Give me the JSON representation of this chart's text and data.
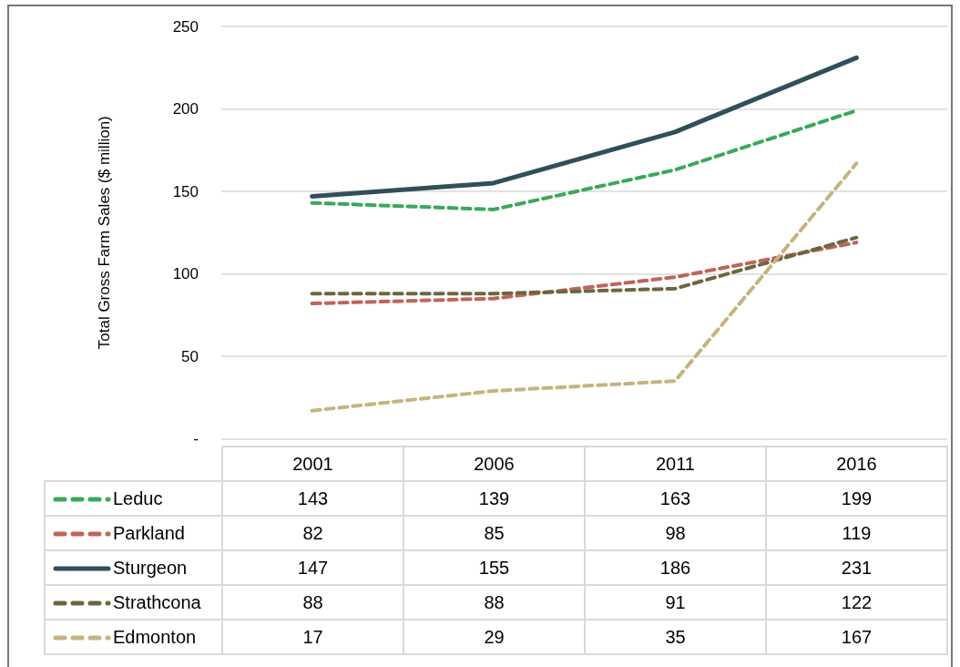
{
  "chart_data": {
    "type": "line",
    "ylabel": "Total Gross Farm Sales ($ million)",
    "categories": [
      "2001",
      "2006",
      "2011",
      "2016"
    ],
    "series": [
      {
        "name": "Leduc",
        "color": "#3aa85a",
        "line_style": "dashed",
        "values": [
          143,
          139,
          163,
          199
        ]
      },
      {
        "name": "Parkland",
        "color": "#c0645a",
        "line_style": "dashed",
        "values": [
          82,
          85,
          98,
          119
        ]
      },
      {
        "name": "Sturgeon",
        "color": "#2f4f5a",
        "line_style": "solid",
        "values": [
          147,
          155,
          186,
          231
        ]
      },
      {
        "name": "Strathcona",
        "color": "#6b6640",
        "line_style": "dashed",
        "values": [
          88,
          88,
          91,
          122
        ]
      },
      {
        "name": "Edmonton",
        "color": "#c4b47f",
        "line_style": "dashed",
        "values": [
          17,
          29,
          35,
          167
        ]
      }
    ],
    "ylim": [
      0,
      250
    ],
    "yticks": [
      {
        "value": 0,
        "label": "-"
      },
      50,
      100,
      150,
      200,
      250
    ],
    "grid": "y",
    "legend": "bottom",
    "marker": "none",
    "data_labels": true
  }
}
